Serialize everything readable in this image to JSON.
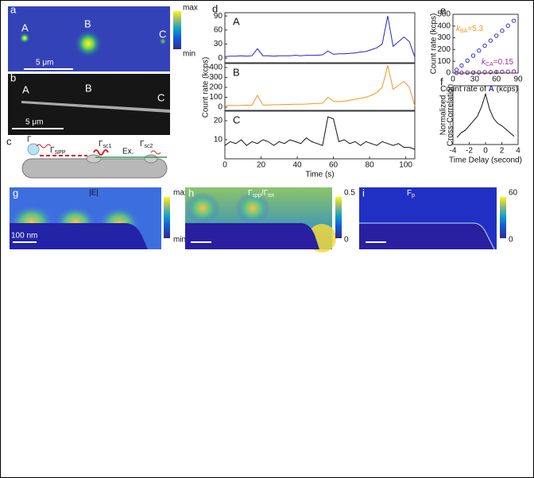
{
  "chart_data": [
    {
      "type": "line",
      "panel": "d",
      "label": "A",
      "x": [
        0,
        3,
        6,
        9,
        12,
        15,
        18,
        21,
        24,
        27,
        30,
        33,
        36,
        39,
        42,
        45,
        48,
        51,
        54,
        57,
        60,
        63,
        66,
        69,
        72,
        75,
        78,
        81,
        84,
        87,
        90,
        93,
        96,
        99,
        102,
        105
      ],
      "series": [
        {
          "color": "#2323d8",
          "values": [
            3,
            4,
            4,
            5,
            4,
            5,
            20,
            5,
            5,
            4,
            5,
            5,
            5,
            6,
            5,
            6,
            6,
            6,
            7,
            15,
            8,
            9,
            9,
            10,
            11,
            13,
            14,
            18,
            22,
            30,
            90,
            25,
            35,
            45,
            35,
            2
          ]
        }
      ],
      "xlim": [
        0,
        105
      ],
      "ylim": [
        -10,
        97
      ],
      "yticks": [
        0,
        30,
        60,
        90
      ]
    },
    {
      "type": "line",
      "label": "B",
      "ylabel": "Count rate (kcps)",
      "x": [
        0,
        3,
        6,
        9,
        12,
        15,
        18,
        21,
        24,
        27,
        30,
        33,
        36,
        39,
        42,
        45,
        48,
        51,
        54,
        57,
        60,
        63,
        66,
        69,
        72,
        75,
        78,
        81,
        84,
        87,
        90,
        93,
        96,
        99,
        102,
        105
      ],
      "series": [
        {
          "color": "#f7931e",
          "values": [
            15,
            18,
            17,
            18,
            20,
            20,
            120,
            22,
            22,
            25,
            25,
            28,
            28,
            30,
            30,
            32,
            35,
            38,
            40,
            100,
            60,
            55,
            60,
            70,
            80,
            90,
            100,
            120,
            150,
            200,
            420,
            180,
            220,
            260,
            200,
            10
          ]
        }
      ],
      "xlim": [
        0,
        105
      ],
      "ylim": [
        -32,
        440
      ],
      "yticks": [
        0,
        100,
        200,
        300,
        400
      ]
    },
    {
      "type": "line",
      "label": "C",
      "xlabel": "Time (s)",
      "x": [
        0,
        3,
        6,
        9,
        12,
        15,
        18,
        21,
        24,
        27,
        30,
        33,
        36,
        39,
        42,
        45,
        48,
        51,
        54,
        57,
        60,
        63,
        66,
        69,
        72,
        75,
        78,
        81,
        84,
        87,
        90,
        93,
        96,
        99,
        102,
        105
      ],
      "series": [
        {
          "color": "#111111",
          "values": [
            7,
            9,
            8,
            10,
            7,
            9,
            8,
            10,
            9,
            7,
            9,
            8,
            10,
            9,
            8,
            11,
            9,
            8,
            7,
            22,
            21,
            9,
            10,
            8,
            9,
            7,
            9,
            8,
            7,
            9,
            8,
            7,
            8,
            6,
            6,
            5
          ]
        }
      ],
      "xlim": [
        0,
        105
      ],
      "ylim": [
        0,
        25
      ],
      "yticks": [
        10,
        20
      ],
      "xticks": [
        0,
        20,
        40,
        60,
        80,
        100
      ]
    },
    {
      "type": "scatter",
      "panel": "e",
      "ylabel": "Count rate (kcps)",
      "xlabel": [
        "Count rate of ",
        "A",
        " (kcps)"
      ],
      "x": [
        5,
        12,
        20,
        28,
        36,
        44,
        52,
        60,
        68,
        76,
        84
      ],
      "series": [
        {
          "color": "#2f2fd0",
          "values": [
            27,
            64,
            106,
            148,
            191,
            233,
            276,
            318,
            360,
            403,
            445
          ]
        },
        {
          "color": "#6a2a80",
          "values": [
            1,
            2,
            3,
            4,
            5,
            7,
            8,
            9,
            10,
            11,
            13
          ]
        }
      ],
      "annotations": [
        {
          "text": "k",
          "sub": "BA",
          "rest": "=5.3",
          "color": "#f7931e"
        },
        {
          "text": "k",
          "sub": "CA",
          "rest": "=0.15",
          "color": "#9b2f9b"
        }
      ],
      "xlim": [
        0,
        90
      ],
      "ylim": [
        0,
        500
      ],
      "xticks": [
        0,
        30,
        60,
        90
      ],
      "yticks": [
        0,
        100,
        200,
        300,
        400,
        500
      ]
    },
    {
      "type": "line",
      "panel": "f",
      "ylabel": [
        "Normalized",
        "Cross-Correlation"
      ],
      "xlabel": "Time Delay (second)",
      "x": [
        -3.5,
        -3,
        -2.5,
        -2,
        -1.5,
        -1,
        -0.5,
        0,
        0.5,
        1,
        1.5,
        2,
        2.5,
        3,
        3.5
      ],
      "series": [
        {
          "color": "#111111",
          "values": [
            0.56,
            0.6,
            0.62,
            0.66,
            0.7,
            0.74,
            0.82,
            0.93,
            0.8,
            0.72,
            0.68,
            0.66,
            0.63,
            0.6,
            0.57
          ]
        }
      ],
      "xlim": [
        -4,
        4
      ],
      "ylim": [
        0.5,
        1.0
      ],
      "xticks": [
        -4,
        -2,
        0,
        2,
        4
      ]
    }
  ],
  "panels": {
    "a": {
      "letter": "a",
      "labels": [
        "A",
        "B",
        "C"
      ],
      "scale": "5 μm",
      "colorbar": [
        "max",
        "min"
      ]
    },
    "b": {
      "letter": "b",
      "labels": [
        "A",
        "B",
        "C"
      ],
      "scale": "5 μm"
    },
    "c": {
      "letter": "c",
      "gamma": "Γ",
      "spp": {
        "t": "Γ",
        "sub": "SPP"
      },
      "sc1": {
        "t": "Γ",
        "sub": "sc1"
      },
      "ex": "Ex.",
      "sc2": {
        "t": "Γ",
        "sub": "sc2"
      }
    },
    "g": {
      "letter": "g",
      "title": "|E|",
      "scale": "100 nm",
      "colorbar": [
        "max",
        "min"
      ]
    },
    "h": {
      "letter": "h",
      "title": [
        {
          "t": "Γ",
          "sub": "spp"
        },
        {
          "t": "/Γ",
          "sub": "tot"
        }
      ],
      "colorbar": [
        "0.5",
        "0"
      ]
    },
    "i": {
      "letter": "i",
      "title": {
        "t": "F",
        "sub": "p"
      },
      "colorbar": [
        "60",
        "0"
      ]
    }
  }
}
